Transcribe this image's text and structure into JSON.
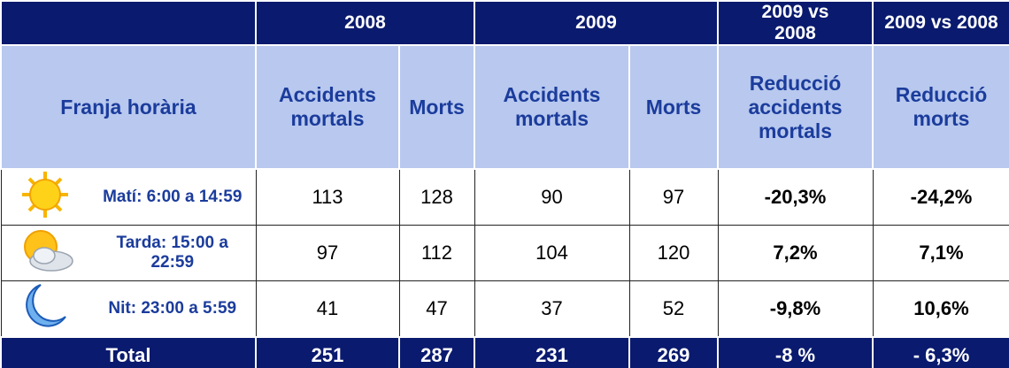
{
  "header": {
    "groups": [
      "2008",
      "2009",
      "2009 vs 2008",
      "2009 vs 2008"
    ],
    "columns": [
      "Franja horària",
      "Accidents mortals",
      "Morts",
      "Accidents mortals",
      "Morts",
      "Reducció accidents mortals",
      "Reducció morts"
    ]
  },
  "rows": [
    {
      "label": "Matí: 6:00 a 14:59",
      "cells": [
        "113",
        "128",
        "90",
        "97",
        "-20,3%",
        "-24,2%"
      ]
    },
    {
      "label": "Tarda: 15:00 a 22:59",
      "cells": [
        "97",
        "112",
        "104",
        "120",
        "7,2%",
        "7,1%"
      ]
    },
    {
      "label": "Nit: 23:00 a 5:59",
      "cells": [
        "41",
        "47",
        "37",
        "52",
        "-9,8%",
        "10,6%"
      ]
    }
  ],
  "total": {
    "label": "Total",
    "cells": [
      "251",
      "287",
      "231",
      "269",
      "-8 %",
      "- 6,3%"
    ]
  }
}
